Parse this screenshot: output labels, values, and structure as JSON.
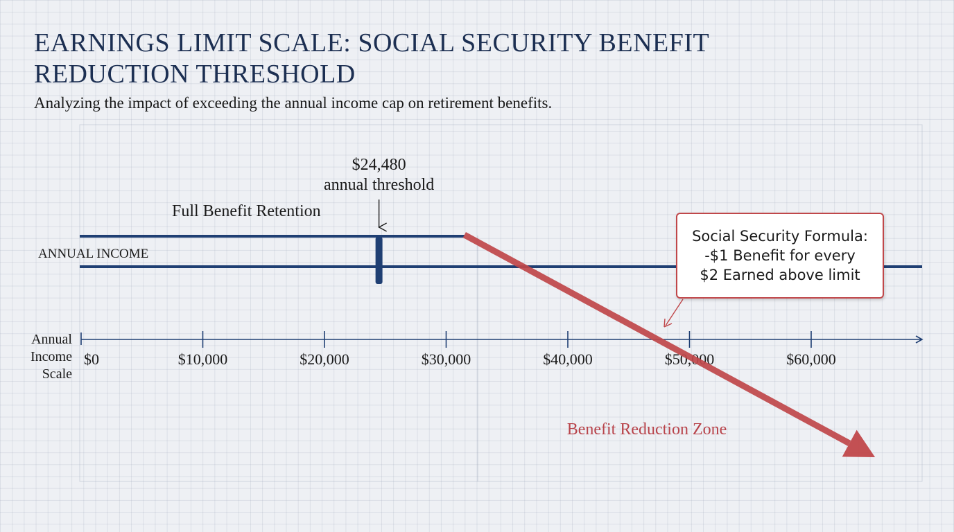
{
  "title": "EARNINGS LIMIT SCALE: SOCIAL SECURITY BENEFIT REDUCTION THRESHOLD",
  "subtitle": "Analyzing the impact of exceeding the annual income cap on retirement benefits.",
  "colors": {
    "navy": "#1f3f73",
    "red": "#c0474a",
    "title": "#1c2f52"
  },
  "chart_data": {
    "type": "line",
    "title": "EARNINGS LIMIT SCALE: SOCIAL SECURITY BENEFIT REDUCTION THRESHOLD",
    "xlabel": "Annual Income Scale",
    "x_ticks": [
      {
        "value": 0,
        "label": "$0"
      },
      {
        "value": 10000,
        "label": "$10,000"
      },
      {
        "value": 20000,
        "label": "$20,000"
      },
      {
        "value": 30000,
        "label": "$30,000"
      },
      {
        "value": 40000,
        "label": "$40,000"
      },
      {
        "value": 50000,
        "label": "$50,000"
      },
      {
        "value": 60000,
        "label": "$60,000"
      }
    ],
    "xlim": [
      0,
      66000
    ],
    "income_band_label": "ANNUAL INCOME",
    "threshold": {
      "value": 24480,
      "value_label": "$24,480",
      "label": "annual threshold"
    },
    "full_benefit_label": "Full Benefit Retention",
    "reduction_start": 31500,
    "reduction_end": 62000,
    "reduction_zone_label": "Benefit Reduction Zone",
    "formula": {
      "lines": [
        "Social Security Formula:",
        "-$1 Benefit for every",
        "$2 Earned above limit"
      ]
    },
    "grid": true
  }
}
